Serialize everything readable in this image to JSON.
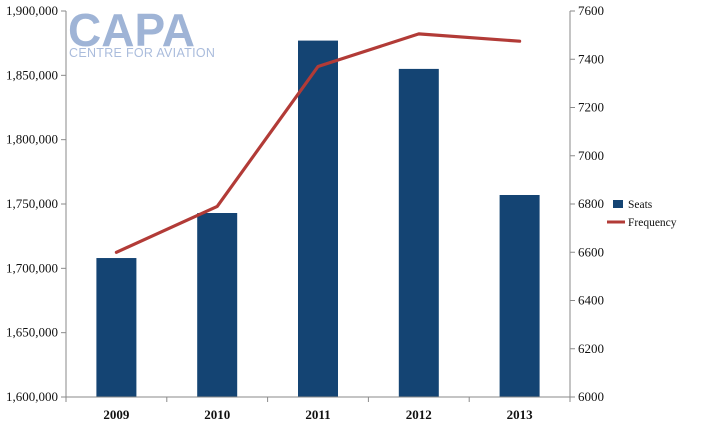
{
  "logo": {
    "name": "CAPA",
    "tagline": "CENTRE FOR AVIATION"
  },
  "colors": {
    "bar": "#144473",
    "line": "#b23b37",
    "axis": "#8a8a8a",
    "logo": "#9fb4d6"
  },
  "chart_data": {
    "type": "bar",
    "categories": [
      "2009",
      "2010",
      "2011",
      "2012",
      "2013"
    ],
    "series": [
      {
        "name": "Seats",
        "type": "bar",
        "axis": "left",
        "values": [
          1708000,
          1743000,
          1877000,
          1855000,
          1757000
        ]
      },
      {
        "name": "Frequency",
        "type": "line",
        "axis": "right",
        "values": [
          6600,
          6790,
          7370,
          7505,
          7475
        ]
      }
    ],
    "left_axis": {
      "ylim": [
        1600000,
        1900000
      ],
      "ticks": [
        1600000,
        1650000,
        1700000,
        1750000,
        1800000,
        1850000,
        1900000
      ],
      "tick_labels": [
        "1,600,000",
        "1,650,000",
        "1,700,000",
        "1,750,000",
        "1,800,000",
        "1,850,000",
        "1,900,000"
      ]
    },
    "right_axis": {
      "ylim": [
        6000,
        7600
      ],
      "ticks": [
        6000,
        6200,
        6400,
        6600,
        6800,
        7000,
        7200,
        7400,
        7600
      ],
      "tick_labels": [
        "6000",
        "6200",
        "6400",
        "6600",
        "6800",
        "7000",
        "7200",
        "7400",
        "7600"
      ]
    },
    "title": "",
    "xlabel": "",
    "ylabel": "",
    "grid": false,
    "legend_position": "right"
  }
}
